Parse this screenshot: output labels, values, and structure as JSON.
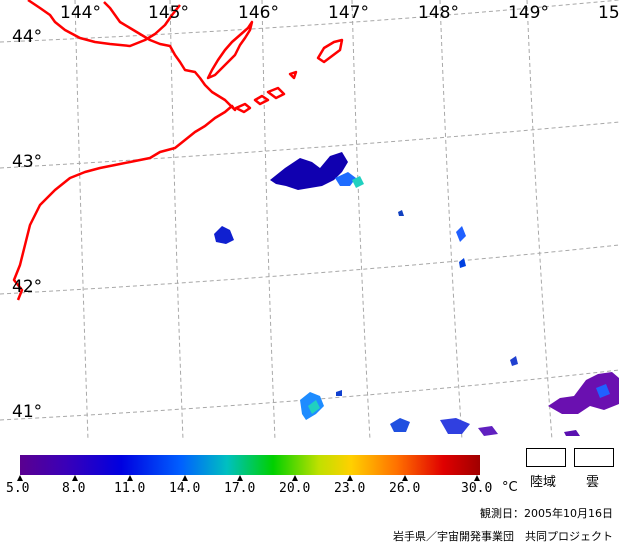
{
  "map": {
    "lon_labels": [
      "144°",
      "145°",
      "146°",
      "147°",
      "148°",
      "149°",
      "15"
    ],
    "lat_labels": [
      "44°",
      "43°",
      "42°",
      "41°"
    ],
    "coastline_color": "#ff0000",
    "grid_color": "#a0a0a0"
  },
  "colorbar": {
    "ticks": [
      "5.0",
      "8.0",
      "11.0",
      "14.0",
      "17.0",
      "20.0",
      "23.0",
      "26.0",
      "30.0"
    ],
    "unit": "°C",
    "min": 5.0,
    "max": 30.0
  },
  "legend": {
    "land": "陸域",
    "cloud": "雲"
  },
  "observation_date": "観測日：2005年10月16日",
  "credit": "岩手県／宇宙開発事業団　共同プロジェクト"
}
